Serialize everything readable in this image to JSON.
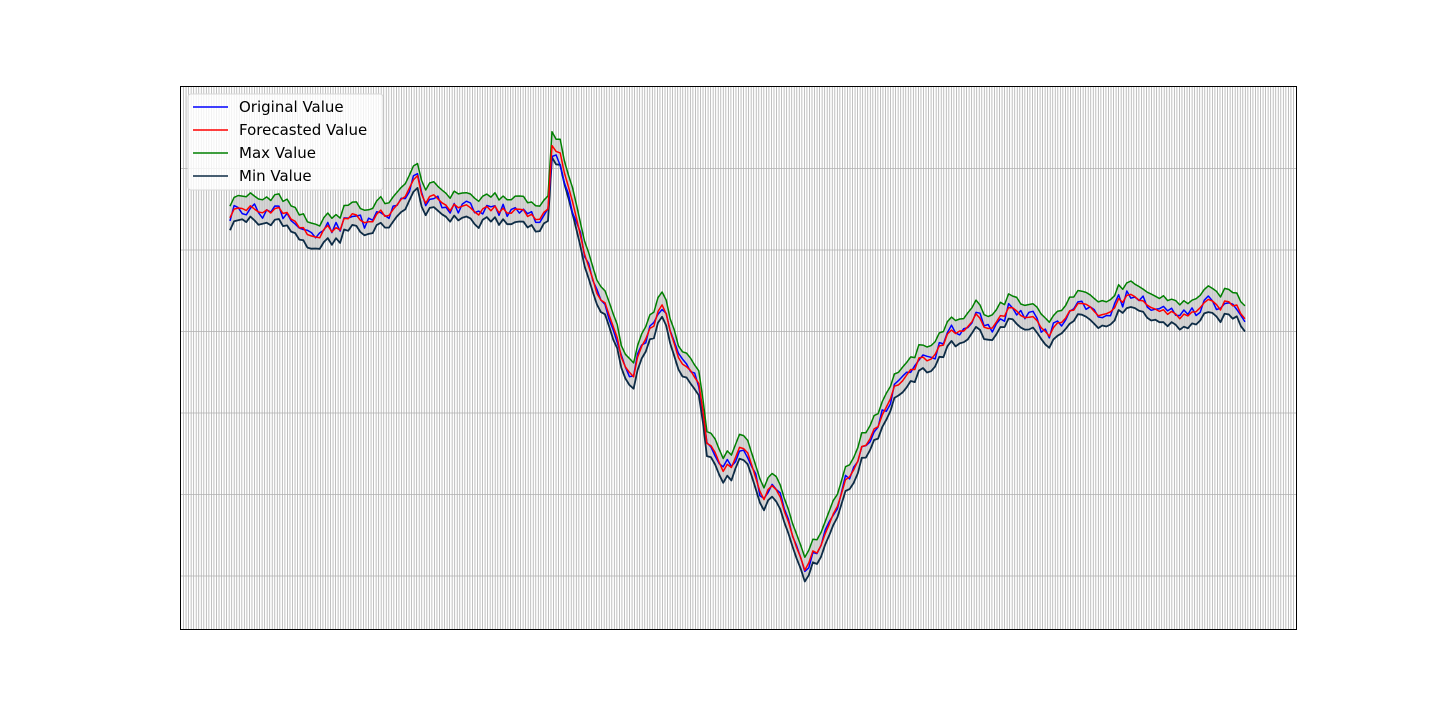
{
  "chart_data": {
    "type": "line",
    "title": "",
    "xlabel": "",
    "ylabel": "",
    "grid": true,
    "legend_position": "top-left",
    "x_count": 250,
    "ylim": [
      0,
      100
    ],
    "series": [
      {
        "name": "Original Value",
        "color": "#0000ff"
      },
      {
        "name": "Forecasted Value",
        "color": "#ff0000"
      },
      {
        "name": "Max Value",
        "color": "#008000"
      },
      {
        "name": "Min Value",
        "color": "#0d2b45"
      }
    ],
    "band_color": "#c8c8c8",
    "forecast_profile": [
      [
        0,
        79
      ],
      [
        5,
        81
      ],
      [
        8,
        79
      ],
      [
        12,
        81
      ],
      [
        15,
        78
      ],
      [
        18,
        76
      ],
      [
        21,
        74
      ],
      [
        24,
        76
      ],
      [
        27,
        77
      ],
      [
        30,
        79
      ],
      [
        34,
        78
      ],
      [
        38,
        79
      ],
      [
        41,
        81
      ],
      [
        44,
        84
      ],
      [
        46,
        87
      ],
      [
        48,
        82
      ],
      [
        50,
        82
      ],
      [
        55,
        81
      ],
      [
        60,
        80
      ],
      [
        64,
        80
      ],
      [
        70,
        80
      ],
      [
        75,
        79
      ],
      [
        78,
        79
      ],
      [
        79,
        93
      ],
      [
        81,
        92
      ],
      [
        83,
        85
      ],
      [
        86,
        74
      ],
      [
        90,
        64
      ],
      [
        93,
        58
      ],
      [
        95,
        54
      ],
      [
        97,
        48
      ],
      [
        99,
        46
      ],
      [
        101,
        53
      ],
      [
        103,
        56
      ],
      [
        106,
        60
      ],
      [
        108,
        56
      ],
      [
        110,
        50
      ],
      [
        112,
        48
      ],
      [
        115,
        44
      ],
      [
        117,
        34
      ],
      [
        119,
        30
      ],
      [
        121,
        27
      ],
      [
        123,
        28
      ],
      [
        125,
        32
      ],
      [
        127,
        30
      ],
      [
        129,
        26
      ],
      [
        131,
        22
      ],
      [
        133,
        24
      ],
      [
        135,
        22
      ],
      [
        137,
        17
      ],
      [
        139,
        12
      ],
      [
        141,
        7
      ],
      [
        143,
        10
      ],
      [
        145,
        13
      ],
      [
        147,
        16
      ],
      [
        149,
        20
      ],
      [
        151,
        25
      ],
      [
        153,
        28
      ],
      [
        156,
        32
      ],
      [
        158,
        36
      ],
      [
        161,
        40
      ],
      [
        164,
        45
      ],
      [
        168,
        48
      ],
      [
        171,
        50
      ],
      [
        175,
        53
      ],
      [
        179,
        56
      ],
      [
        183,
        58
      ],
      [
        186,
        56
      ],
      [
        189,
        58
      ],
      [
        192,
        60
      ],
      [
        195,
        58
      ],
      [
        198,
        57
      ],
      [
        201,
        55
      ],
      [
        205,
        58
      ],
      [
        209,
        62
      ],
      [
        213,
        59
      ],
      [
        217,
        60
      ],
      [
        221,
        63
      ],
      [
        225,
        60
      ],
      [
        229,
        60
      ],
      [
        233,
        58
      ],
      [
        237,
        60
      ],
      [
        241,
        61
      ],
      [
        245,
        61
      ],
      [
        249,
        59
      ]
    ]
  }
}
